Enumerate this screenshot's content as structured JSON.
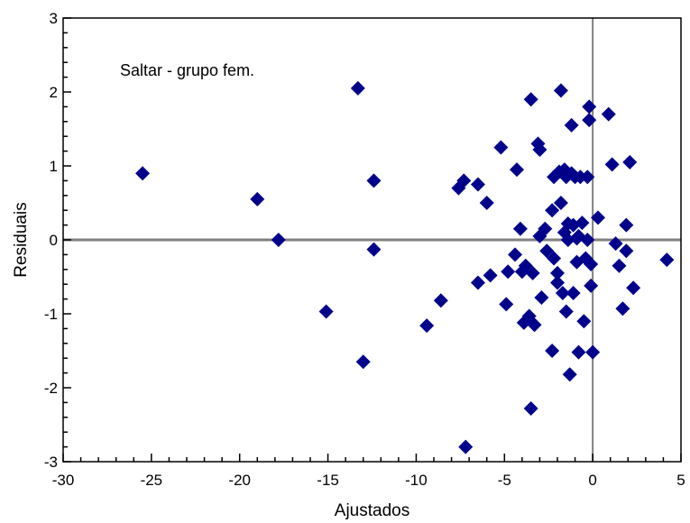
{
  "chart_data": {
    "type": "scatter",
    "xlabel": "Ajustados",
    "ylabel": "Residuais",
    "xlim": [
      -30,
      5
    ],
    "ylim": [
      -3,
      3
    ],
    "xticks": [
      -30,
      -25,
      -20,
      -15,
      -10,
      -5,
      0,
      5
    ],
    "yticks": [
      -3,
      -2,
      -1,
      0,
      1,
      2,
      3
    ],
    "xtick_labels": [
      "-30",
      "-25",
      "-20",
      "-15",
      "-10",
      "-5",
      "0",
      "5"
    ],
    "ytick_labels": [
      "-3",
      "-2",
      "-1",
      "0",
      "1",
      "2",
      "3"
    ],
    "annotation": "Saltar - grupo fem.",
    "reference_lines": {
      "x": 0,
      "y": 0
    },
    "grid": false,
    "marker": "diamond",
    "marker_color": "#00008B",
    "points": [
      [
        -25.5,
        0.9
      ],
      [
        -19.0,
        0.55
      ],
      [
        -17.8,
        0.0
      ],
      [
        -15.1,
        -0.97
      ],
      [
        -13.3,
        2.05
      ],
      [
        -13.0,
        -1.65
      ],
      [
        -12.4,
        0.8
      ],
      [
        -12.4,
        -0.13
      ],
      [
        -9.4,
        -1.16
      ],
      [
        -8.6,
        -0.82
      ],
      [
        -7.6,
        0.7
      ],
      [
        -7.3,
        0.8
      ],
      [
        -7.2,
        -2.8
      ],
      [
        -6.5,
        0.75
      ],
      [
        -6.5,
        -0.58
      ],
      [
        -6.0,
        0.5
      ],
      [
        -5.8,
        -0.48
      ],
      [
        -5.2,
        1.25
      ],
      [
        -4.9,
        -0.87
      ],
      [
        -4.8,
        -0.43
      ],
      [
        -4.4,
        -0.2
      ],
      [
        -4.3,
        0.95
      ],
      [
        -4.1,
        0.15
      ],
      [
        -4.0,
        -0.43
      ],
      [
        -3.9,
        -1.12
      ],
      [
        -3.8,
        -0.35
      ],
      [
        -3.6,
        -1.03
      ],
      [
        -3.5,
        -2.28
      ],
      [
        -3.5,
        1.9
      ],
      [
        -3.4,
        -0.45
      ],
      [
        -3.3,
        -1.15
      ],
      [
        -3.1,
        1.3
      ],
      [
        -3.0,
        1.22
      ],
      [
        -3.0,
        0.05
      ],
      [
        -2.9,
        -0.78
      ],
      [
        -2.7,
        0.15
      ],
      [
        -2.6,
        -0.15
      ],
      [
        -2.3,
        0.4
      ],
      [
        -2.3,
        -1.5
      ],
      [
        -2.2,
        -0.25
      ],
      [
        -2.2,
        0.85
      ],
      [
        -2.0,
        -0.45
      ],
      [
        -2.0,
        -0.58
      ],
      [
        -1.9,
        0.92
      ],
      [
        -1.8,
        2.02
      ],
      [
        -1.8,
        0.5
      ],
      [
        -1.7,
        -0.72
      ],
      [
        -1.6,
        0.95
      ],
      [
        -1.6,
        0.1
      ],
      [
        -1.5,
        -0.97
      ],
      [
        -1.5,
        0.85
      ],
      [
        -1.4,
        0.22
      ],
      [
        -1.4,
        0.0
      ],
      [
        -1.3,
        -1.82
      ],
      [
        -1.2,
        1.55
      ],
      [
        -1.2,
        0.9
      ],
      [
        -1.1,
        -0.72
      ],
      [
        -1.1,
        0.2
      ],
      [
        -1.0,
        0.85
      ],
      [
        -0.9,
        0.02
      ],
      [
        -0.9,
        -0.3
      ],
      [
        -0.8,
        -1.52
      ],
      [
        -0.8,
        0.05
      ],
      [
        -0.7,
        0.85
      ],
      [
        -0.6,
        0.23
      ],
      [
        -0.5,
        -1.1
      ],
      [
        -0.4,
        -0.25
      ],
      [
        -0.3,
        0.85
      ],
      [
        -0.3,
        0.0
      ],
      [
        -0.2,
        1.62
      ],
      [
        -0.2,
        1.8
      ],
      [
        -0.1,
        -0.62
      ],
      [
        -0.1,
        -0.33
      ],
      [
        0.0,
        -1.52
      ],
      [
        0.3,
        0.3
      ],
      [
        0.9,
        1.7
      ],
      [
        1.1,
        1.02
      ],
      [
        1.3,
        -0.05
      ],
      [
        1.5,
        -0.35
      ],
      [
        1.7,
        -0.93
      ],
      [
        1.9,
        0.2
      ],
      [
        1.9,
        -0.15
      ],
      [
        2.1,
        1.05
      ],
      [
        2.3,
        -0.65
      ],
      [
        4.2,
        -0.27
      ]
    ]
  }
}
